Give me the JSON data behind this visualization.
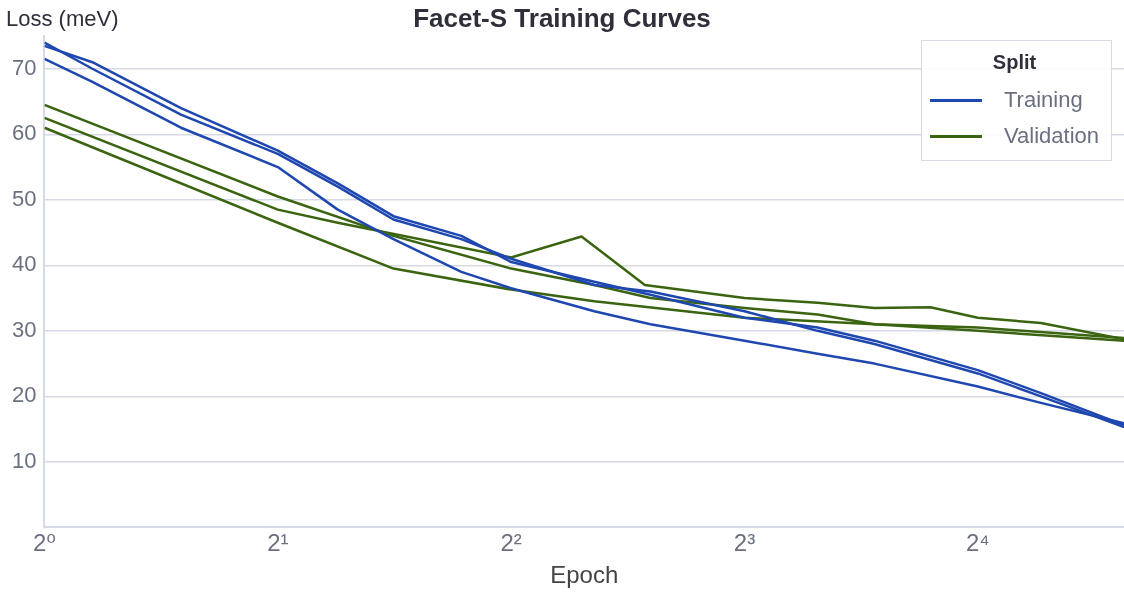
{
  "chart_data": {
    "type": "line",
    "title": "Facet-S Training Curves",
    "xlabel": "Epoch",
    "ylabel": "Loss (meV)",
    "legend_title": "Split",
    "legend": "top right",
    "grid": "y",
    "log": "x",
    "marker": "none",
    "line_style": "solid",
    "xlim": [
      1,
      24.7
    ],
    "ylim": [
      0,
      75
    ],
    "xticks": [
      {
        "value": 1,
        "label": "2⁰"
      },
      {
        "value": 2,
        "label": "2¹"
      },
      {
        "value": 4,
        "label": "2²"
      },
      {
        "value": 8,
        "label": "2³"
      },
      {
        "value": 16,
        "label": "2⁴"
      }
    ],
    "yticks": [
      10,
      20,
      30,
      40,
      50,
      60,
      70
    ],
    "series": [
      {
        "name": "Training",
        "color": "#1f47b0",
        "x": [
          1,
          1.153,
          1.5,
          2,
          2.39,
          2.82,
          3.45,
          4,
          5.12,
          6.05,
          8,
          9.94,
          11.77,
          16,
          19.3,
          24.7
        ],
        "values": [
          74,
          70,
          63,
          57,
          52,
          47,
          44,
          41,
          37,
          36,
          33,
          30,
          28,
          23.5,
          20,
          15.3
        ]
      },
      {
        "color": "#1f47b0",
        "x": [
          1,
          1.153,
          1.5,
          2,
          2.39,
          2.82,
          3.45,
          4,
          5.12,
          6.05,
          8,
          9.94,
          11.77,
          16,
          19.3,
          24.7
        ],
        "values": [
          73.5,
          71,
          64,
          57.5,
          52.5,
          47.5,
          44.5,
          40.5,
          37.5,
          35.5,
          32,
          30.5,
          28.5,
          24,
          20.5,
          15.6
        ]
      },
      {
        "color": "#1f47b0",
        "x": [
          1,
          1.153,
          1.5,
          2,
          2.39,
          2.82,
          3.45,
          4,
          5.12,
          6.05,
          8,
          9.94,
          11.77,
          16,
          19.3,
          24.7
        ],
        "values": [
          71.5,
          68,
          61,
          55,
          48.5,
          44,
          39,
          36.5,
          33,
          31,
          28.5,
          26.5,
          25,
          21.5,
          19,
          15.9
        ]
      },
      {
        "name": "Validation",
        "color": "#3b6410",
        "x": [
          1,
          2,
          2.82,
          4,
          5.12,
          8,
          11.77,
          16,
          24.7
        ],
        "values": [
          61,
          46.5,
          39.5,
          36.3,
          34.5,
          32,
          31,
          30,
          28.5
        ]
      },
      {
        "color": "#3b6410",
        "x": [
          1,
          2,
          2.39,
          4,
          4.93,
          5.95,
          8,
          9.94,
          11.77,
          13.9,
          16,
          19.3,
          24.7
        ],
        "values": [
          62.5,
          48.5,
          46.5,
          41.2,
          44.4,
          37,
          35,
          34.3,
          33.5,
          33.6,
          32,
          31.2,
          28.7
        ]
      },
      {
        "color": "#3b6410",
        "x": [
          1,
          2,
          2.82,
          4,
          5.12,
          6.05,
          8,
          9.94,
          11.77,
          16,
          24.7
        ],
        "values": [
          64.5,
          50.5,
          44.5,
          39.5,
          37,
          35,
          33.5,
          32.5,
          31,
          30.5,
          28.9
        ]
      }
    ]
  }
}
